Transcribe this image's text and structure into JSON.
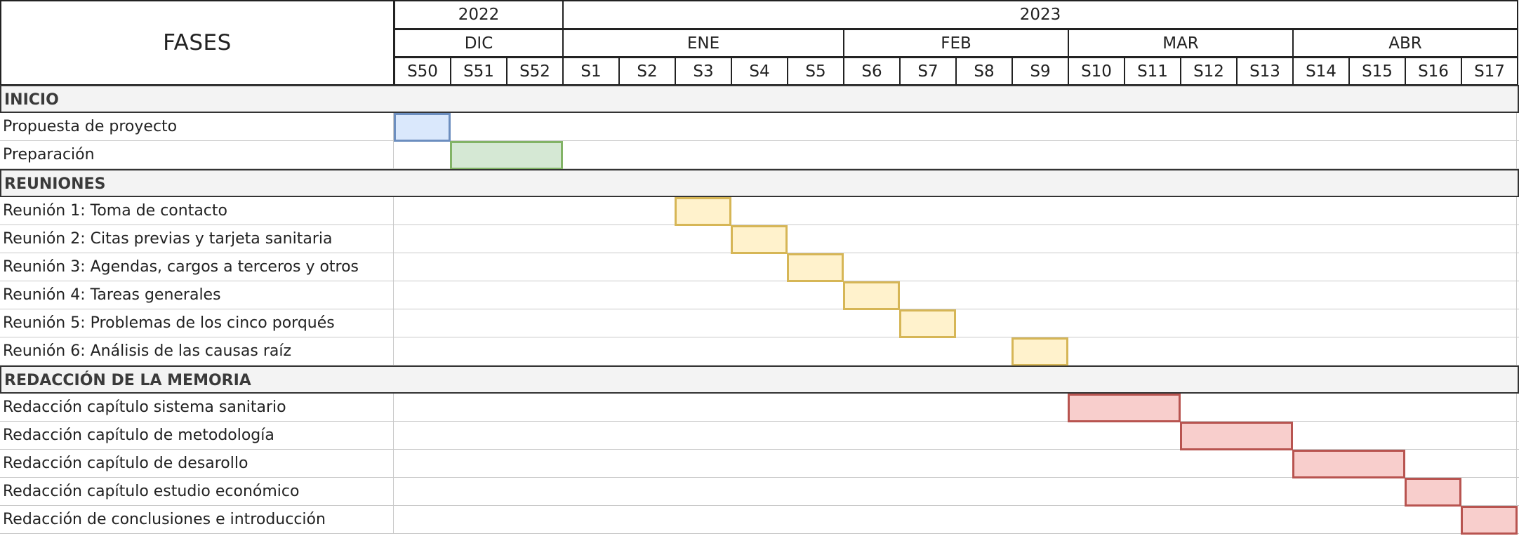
{
  "header": {
    "fases_label": "FASES",
    "years": [
      "2022",
      "2023"
    ],
    "months": [
      "DIC",
      "ENE",
      "FEB",
      "MAR",
      "ABR"
    ],
    "weeks": [
      "S50",
      "S51",
      "S52",
      "S1",
      "S2",
      "S3",
      "S4",
      "S5",
      "S6",
      "S7",
      "S8",
      "S9",
      "S10",
      "S11",
      "S12",
      "S13",
      "S14",
      "S15",
      "S16",
      "S17"
    ]
  },
  "colors": {
    "blue": {
      "fill": "#dae8fc",
      "stroke": "#6c8ebf"
    },
    "green": {
      "fill": "#d5e8d4",
      "stroke": "#82b366"
    },
    "yellow": {
      "fill": "#fff2cc",
      "stroke": "#d6b656"
    },
    "red": {
      "fill": "#f8cecc",
      "stroke": "#b85450"
    }
  },
  "rows": [
    {
      "type": "section",
      "label": "INICIO"
    },
    {
      "type": "task",
      "label": "Propuesta de proyecto",
      "start": "S50",
      "end": "S50",
      "color": "blue"
    },
    {
      "type": "task",
      "label": "Preparación",
      "start": "S51",
      "end": "S52",
      "color": "green"
    },
    {
      "type": "section",
      "label": "REUNIONES"
    },
    {
      "type": "task",
      "label": "Reunión 1: Toma de contacto",
      "start": "S3",
      "end": "S3",
      "color": "yellow"
    },
    {
      "type": "task",
      "label": "Reunión 2: Citas previas y tarjeta sanitaria",
      "start": "S4",
      "end": "S4",
      "color": "yellow"
    },
    {
      "type": "task",
      "label": "Reunión 3: Agendas, cargos a terceros y otros",
      "start": "S5",
      "end": "S5",
      "color": "yellow"
    },
    {
      "type": "task",
      "label": "Reunión 4: Tareas generales",
      "start": "S6",
      "end": "S6",
      "color": "yellow"
    },
    {
      "type": "task",
      "label": "Reunión 5: Problemas de los cinco porqués",
      "start": "S7",
      "end": "S7",
      "color": "yellow"
    },
    {
      "type": "task",
      "label": "Reunión 6: Análisis de las causas raíz",
      "start": "S9",
      "end": "S9",
      "color": "yellow"
    },
    {
      "type": "section",
      "label": "REDACCIÓN DE LA MEMORIA"
    },
    {
      "type": "task",
      "label": "Redacción capítulo sistema sanitario",
      "start": "S10",
      "end": "S11",
      "color": "red"
    },
    {
      "type": "task",
      "label": "Redacción capítulo de metodología",
      "start": "S12",
      "end": "S13",
      "color": "red"
    },
    {
      "type": "task",
      "label": "Redacción capítulo de desarollo",
      "start": "S14",
      "end": "S15",
      "color": "red"
    },
    {
      "type": "task",
      "label": "Redacción capítulo estudio económico",
      "start": "S16",
      "end": "S16",
      "color": "red"
    },
    {
      "type": "task",
      "label": "Redacción de conclusiones e introducción",
      "start": "S17",
      "end": "S17",
      "color": "red"
    }
  ]
}
